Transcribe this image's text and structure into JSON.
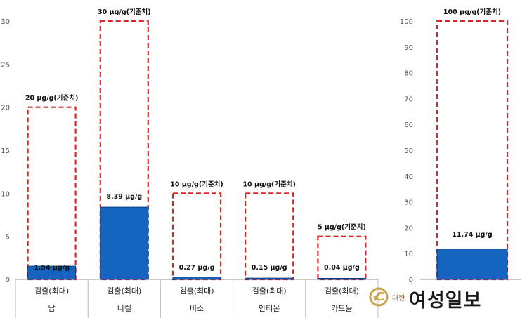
{
  "chart_data": [
    {
      "type": "bar",
      "ylim": [
        0,
        30
      ],
      "yticks": [
        0,
        5,
        10,
        15,
        20,
        25,
        30
      ],
      "categories": [
        {
          "metal": "납",
          "measure": "검출(최대)",
          "detected": 1.54,
          "detected_label": "1.54 μg/g",
          "standard": 20,
          "standard_label": "20 μg/g(기준치)"
        },
        {
          "metal": "니켈",
          "measure": "검출(최대)",
          "detected": 8.39,
          "detected_label": "8.39 μg/g",
          "standard": 30,
          "standard_label": "30 μg/g(기준치)"
        },
        {
          "metal": "비소",
          "measure": "검출(최대)",
          "detected": 0.27,
          "detected_label": "0.27 μg/g",
          "standard": 10,
          "standard_label": "10 μg/g(기준치)"
        },
        {
          "metal": "안티몬",
          "measure": "검출(최대)",
          "detected": 0.15,
          "detected_label": "0.15 μg/g",
          "standard": 10,
          "standard_label": "10 μg/g(기준치)"
        },
        {
          "metal": "카드뮴",
          "measure": "검출(최대)",
          "detected": 0.04,
          "detected_label": "0.04 μg/g",
          "standard": 5,
          "standard_label": "5 μg/g(기준치)"
        }
      ],
      "colors": {
        "detected_fill": "#1565c0",
        "detected_stroke": "#0d3f80",
        "standard_stroke": "#d62828"
      }
    },
    {
      "type": "bar",
      "ylim": [
        0,
        100
      ],
      "yticks": [
        0,
        10,
        20,
        30,
        40,
        50,
        60,
        70,
        80,
        90,
        100
      ],
      "categories": [
        {
          "detected": 11.74,
          "detected_label": "11.74 μg/g",
          "standard": 100,
          "standard_label": "100 μg/g(기준치)"
        }
      ],
      "colors": {
        "detected_fill": "#1565c0",
        "detected_stroke": "#0d3f80",
        "standard_stroke": "#d62828"
      }
    }
  ],
  "watermark": {
    "small_text": "대한",
    "big_text": "여성일보",
    "mark_color": "#c9a24a"
  }
}
